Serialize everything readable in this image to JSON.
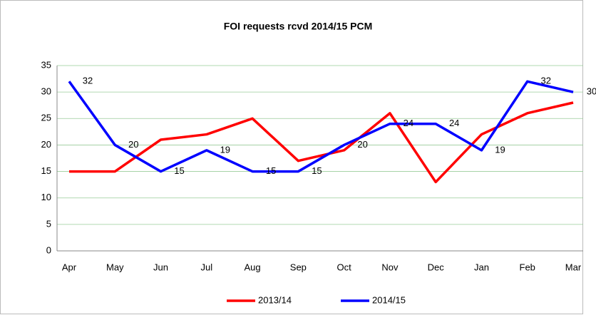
{
  "chart_data": {
    "type": "line",
    "title": "FOI requests rcvd 2014/15 PCM",
    "categories": [
      "Apr",
      "May",
      "Jun",
      "Jul",
      "Aug",
      "Sep",
      "Oct",
      "Nov",
      "Dec",
      "Jan",
      "Feb",
      "Mar"
    ],
    "series": [
      {
        "name": "2013/14",
        "color": "#ff0000",
        "values": [
          15,
          15,
          21,
          22,
          25,
          17,
          19,
          26,
          13,
          22,
          26,
          28
        ]
      },
      {
        "name": "2014/15",
        "color": "#0000ff",
        "values": [
          32,
          20,
          15,
          19,
          15,
          15,
          20,
          24,
          24,
          19,
          32,
          30
        ],
        "data_labels": true
      }
    ],
    "ylim": [
      0,
      35
    ],
    "yticks": [
      0,
      5,
      10,
      15,
      20,
      25,
      30,
      35
    ],
    "grid": true,
    "legend": "bottom"
  }
}
